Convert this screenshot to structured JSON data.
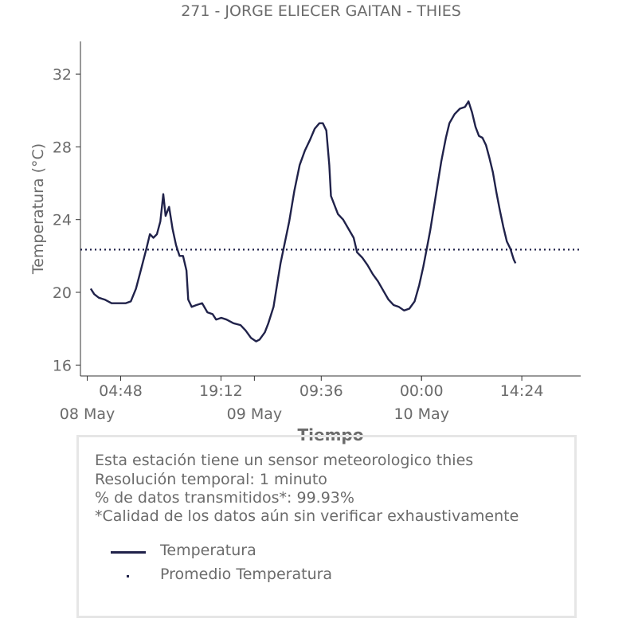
{
  "chart_data": {
    "type": "line",
    "title": "271 - JORGE ELIECER GAITAN - THIES",
    "xlabel": "Tiempo",
    "ylabel": "Temperatura (°C)",
    "ylim": [
      15.4,
      33.8
    ],
    "yticks": [
      16,
      20,
      24,
      28,
      32
    ],
    "x_tick_labels": [
      "04:48",
      "19:12",
      "09:36",
      "00:00",
      "14:24"
    ],
    "x_date_labels": [
      "08 May",
      "09 May",
      "10 May"
    ],
    "grid": false,
    "series": [
      {
        "name": "Temperatura",
        "color": "#20224a",
        "style": "solid",
        "points": [
          [
            "08 May 00:30",
            20.2
          ],
          [
            "08 May 01:00",
            19.9
          ],
          [
            "08 May 01:40",
            19.7
          ],
          [
            "08 May 02:30",
            19.6
          ],
          [
            "08 May 03:30",
            19.4
          ],
          [
            "08 May 04:30",
            19.4
          ],
          [
            "08 May 05:30",
            19.4
          ],
          [
            "08 May 06:15",
            19.5
          ],
          [
            "08 May 07:00",
            20.2
          ],
          [
            "08 May 07:45",
            21.3
          ],
          [
            "08 May 08:30",
            22.4
          ],
          [
            "08 May 09:00",
            23.2
          ],
          [
            "08 May 09:30",
            23.0
          ],
          [
            "08 May 10:00",
            23.2
          ],
          [
            "08 May 10:30",
            23.9
          ],
          [
            "08 May 10:55",
            25.4
          ],
          [
            "08 May 11:15",
            24.2
          ],
          [
            "08 May 11:45",
            24.7
          ],
          [
            "08 May 12:15",
            23.5
          ],
          [
            "08 May 12:45",
            22.6
          ],
          [
            "08 May 13:15",
            22.0
          ],
          [
            "08 May 13:45",
            22.0
          ],
          [
            "08 May 14:15",
            21.2
          ],
          [
            "08 May 14:30",
            19.6
          ],
          [
            "08 May 15:00",
            19.2
          ],
          [
            "08 May 15:40",
            19.3
          ],
          [
            "08 May 16:30",
            19.4
          ],
          [
            "08 May 17:15",
            18.9
          ],
          [
            "08 May 18:00",
            18.8
          ],
          [
            "08 May 18:30",
            18.5
          ],
          [
            "08 May 19:15",
            18.6
          ],
          [
            "08 May 20:00",
            18.5
          ],
          [
            "08 May 21:00",
            18.3
          ],
          [
            "08 May 22:00",
            18.2
          ],
          [
            "08 May 22:45",
            17.9
          ],
          [
            "08 May 23:30",
            17.5
          ],
          [
            "09 May 00:15",
            17.3
          ],
          [
            "09 May 00:45",
            17.4
          ],
          [
            "09 May 01:30",
            17.8
          ],
          [
            "09 May 02:00",
            18.3
          ],
          [
            "09 May 02:45",
            19.2
          ],
          [
            "09 May 03:20",
            20.6
          ],
          [
            "09 May 03:45",
            21.6
          ],
          [
            "09 May 04:15",
            22.5
          ],
          [
            "09 May 05:00",
            23.9
          ],
          [
            "09 May 05:45",
            25.6
          ],
          [
            "09 May 06:30",
            27.0
          ],
          [
            "09 May 07:15",
            27.8
          ],
          [
            "09 May 08:00",
            28.4
          ],
          [
            "09 May 08:40",
            29.0
          ],
          [
            "09 May 09:20",
            29.3
          ],
          [
            "09 May 09:50",
            29.3
          ],
          [
            "09 May 10:20",
            28.9
          ],
          [
            "09 May 10:45",
            27.0
          ],
          [
            "09 May 11:00",
            25.3
          ],
          [
            "09 May 11:30",
            24.8
          ],
          [
            "09 May 12:00",
            24.3
          ],
          [
            "09 May 12:45",
            24.0
          ],
          [
            "09 May 13:30",
            23.5
          ],
          [
            "09 May 14:15",
            23.0
          ],
          [
            "09 May 14:45",
            22.2
          ],
          [
            "09 May 15:30",
            21.9
          ],
          [
            "09 May 16:15",
            21.5
          ],
          [
            "09 May 17:00",
            21.0
          ],
          [
            "09 May 17:45",
            20.6
          ],
          [
            "09 May 18:30",
            20.1
          ],
          [
            "09 May 19:15",
            19.6
          ],
          [
            "09 May 20:00",
            19.3
          ],
          [
            "09 May 20:45",
            19.2
          ],
          [
            "09 May 21:30",
            19.0
          ],
          [
            "09 May 22:15",
            19.1
          ],
          [
            "09 May 23:00",
            19.5
          ],
          [
            "09 May 23:40",
            20.4
          ],
          [
            "10 May 00:15",
            21.4
          ],
          [
            "10 May 00:45",
            22.4
          ],
          [
            "10 May 01:15",
            23.4
          ],
          [
            "10 May 01:45",
            24.6
          ],
          [
            "10 May 02:20",
            26.0
          ],
          [
            "10 May 02:50",
            27.2
          ],
          [
            "10 May 03:30",
            28.5
          ],
          [
            "10 May 04:00",
            29.3
          ],
          [
            "10 May 04:45",
            29.8
          ],
          [
            "10 May 05:30",
            30.1
          ],
          [
            "10 May 06:15",
            30.2
          ],
          [
            "10 May 06:45",
            30.5
          ],
          [
            "10 May 07:15",
            29.9
          ],
          [
            "10 May 07:45",
            29.1
          ],
          [
            "10 May 08:15",
            28.6
          ],
          [
            "10 May 08:45",
            28.5
          ],
          [
            "10 May 09:15",
            28.1
          ],
          [
            "10 May 09:45",
            27.4
          ],
          [
            "10 May 10:15",
            26.6
          ],
          [
            "10 May 10:45",
            25.5
          ],
          [
            "10 May 11:15",
            24.5
          ],
          [
            "10 May 11:45",
            23.6
          ],
          [
            "10 May 12:15",
            22.8
          ],
          [
            "10 May 12:45",
            22.4
          ],
          [
            "10 May 13:15",
            21.8
          ],
          [
            "10 May 13:30",
            21.6
          ]
        ]
      },
      {
        "name": "Promedio Temperatura",
        "color": "#20224a",
        "style": "dotted",
        "value": 22.35
      }
    ]
  },
  "info": {
    "line1": "Esta estación tiene un sensor meteorologico thies",
    "line2": "Resolución temporal: 1 minuto",
    "line3": "% de datos transmitidos*: 99.93%",
    "line4": "*Calidad de los datos aún sin verificar exhaustivamente"
  },
  "legend": {
    "temp_label": "Temperatura",
    "avg_label": "Promedio Temperatura"
  }
}
